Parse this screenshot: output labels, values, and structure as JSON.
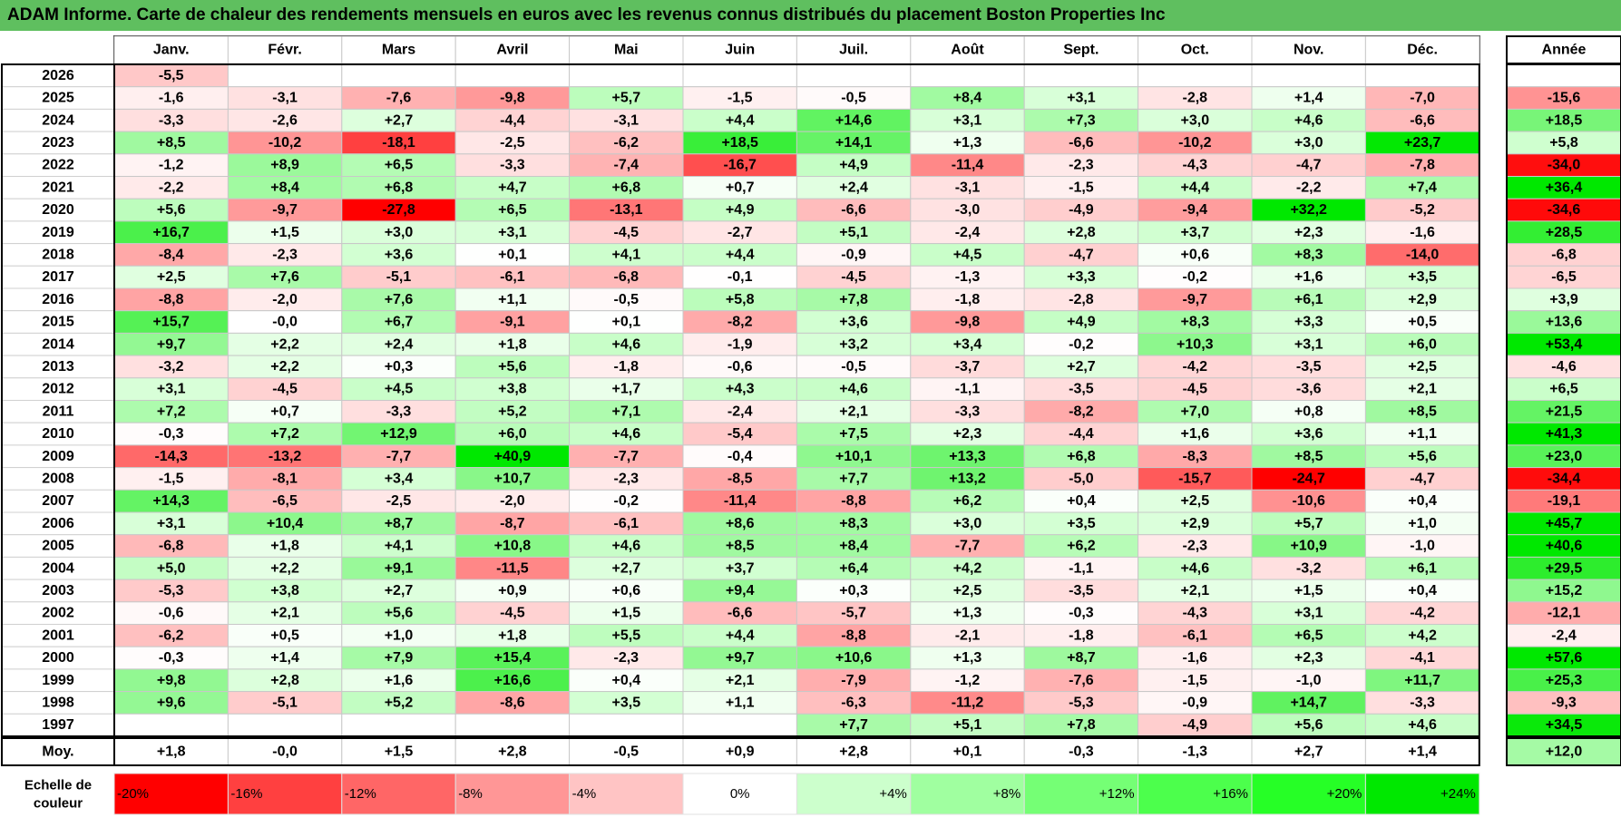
{
  "title": "ADAM Informe. Carte de chaleur des rendements mensuels en euros avec les revenus connus distribués du placement Boston Properties Inc",
  "chart_data": {
    "type": "heatmap",
    "title": "ADAM Informe. Carte de chaleur des rendements mensuels en euros avec les revenus connus distribués du placement Boston Properties Inc",
    "columns": [
      "Janv.",
      "Févr.",
      "Mars",
      "Avril",
      "Mai",
      "Juin",
      "Juil.",
      "Août",
      "Sept.",
      "Oct.",
      "Nov.",
      "Déc."
    ],
    "annual_header": "Année",
    "rows": [
      {
        "year": "2026",
        "months": [
          "-5,5",
          "",
          "",
          "",
          "",
          "",
          "",
          "",
          "",
          "",
          "",
          ""
        ],
        "annual": ""
      },
      {
        "year": "2025",
        "months": [
          "-1,6",
          "-3,1",
          "-7,6",
          "-9,8",
          "+5,7",
          "-1,5",
          "-0,5",
          "+8,4",
          "+3,1",
          "-2,8",
          "+1,4",
          "-7,0"
        ],
        "annual": "-15,6"
      },
      {
        "year": "2024",
        "months": [
          "-3,3",
          "-2,6",
          "+2,7",
          "-4,4",
          "-3,1",
          "+4,4",
          "+14,6",
          "+3,1",
          "+7,3",
          "+3,0",
          "+4,6",
          "-6,6"
        ],
        "annual": "+18,5"
      },
      {
        "year": "2023",
        "months": [
          "+8,5",
          "-10,2",
          "-18,1",
          "-2,5",
          "-6,2",
          "+18,5",
          "+14,1",
          "+1,3",
          "-6,6",
          "-10,2",
          "+3,0",
          "+23,7"
        ],
        "annual": "+5,8"
      },
      {
        "year": "2022",
        "months": [
          "-1,2",
          "+8,9",
          "+6,5",
          "-3,3",
          "-7,4",
          "-16,7",
          "+4,9",
          "-11,4",
          "-2,3",
          "-4,3",
          "-4,7",
          "-7,8"
        ],
        "annual": "-34,0"
      },
      {
        "year": "2021",
        "months": [
          "-2,2",
          "+8,4",
          "+6,8",
          "+4,7",
          "+6,8",
          "+0,7",
          "+2,4",
          "-3,1",
          "-1,5",
          "+4,4",
          "-2,2",
          "+7,4"
        ],
        "annual": "+36,4"
      },
      {
        "year": "2020",
        "months": [
          "+5,6",
          "-9,7",
          "-27,8",
          "+6,5",
          "-13,1",
          "+4,9",
          "-6,6",
          "-3,0",
          "-4,9",
          "-9,4",
          "+32,2",
          "-5,2"
        ],
        "annual": "-34,6"
      },
      {
        "year": "2019",
        "months": [
          "+16,7",
          "+1,5",
          "+3,0",
          "+3,1",
          "-4,5",
          "-2,7",
          "+5,1",
          "-2,4",
          "+2,8",
          "+3,7",
          "+2,3",
          "-1,6"
        ],
        "annual": "+28,5"
      },
      {
        "year": "2018",
        "months": [
          "-8,4",
          "-2,3",
          "+3,6",
          "+0,1",
          "+4,1",
          "+4,4",
          "-0,9",
          "+4,5",
          "-4,7",
          "+0,6",
          "+8,3",
          "-14,0"
        ],
        "annual": "-6,8"
      },
      {
        "year": "2017",
        "months": [
          "+2,5",
          "+7,6",
          "-5,1",
          "-6,1",
          "-6,8",
          "-0,1",
          "-4,5",
          "-1,3",
          "+3,3",
          "-0,2",
          "+1,6",
          "+3,5"
        ],
        "annual": "-6,5"
      },
      {
        "year": "2016",
        "months": [
          "-8,8",
          "-2,0",
          "+7,6",
          "+1,1",
          "-0,5",
          "+5,8",
          "+7,8",
          "-1,8",
          "-2,8",
          "-9,7",
          "+6,1",
          "+2,9"
        ],
        "annual": "+3,9"
      },
      {
        "year": "2015",
        "months": [
          "+15,7",
          "-0,0",
          "+6,7",
          "-9,1",
          "+0,1",
          "-8,2",
          "+3,6",
          "-9,8",
          "+4,9",
          "+8,3",
          "+3,3",
          "+0,5"
        ],
        "annual": "+13,6"
      },
      {
        "year": "2014",
        "months": [
          "+9,7",
          "+2,2",
          "+2,4",
          "+1,8",
          "+4,6",
          "-1,9",
          "+3,2",
          "+3,4",
          "-0,2",
          "+10,3",
          "+3,1",
          "+6,0"
        ],
        "annual": "+53,4"
      },
      {
        "year": "2013",
        "months": [
          "-3,2",
          "+2,2",
          "+0,3",
          "+5,6",
          "-1,8",
          "-0,6",
          "-0,5",
          "-3,7",
          "+2,7",
          "-4,2",
          "-3,5",
          "+2,5"
        ],
        "annual": "-4,6"
      },
      {
        "year": "2012",
        "months": [
          "+3,1",
          "-4,5",
          "+4,5",
          "+3,8",
          "+1,7",
          "+4,3",
          "+4,6",
          "-1,1",
          "-3,5",
          "-4,5",
          "-3,6",
          "+2,1"
        ],
        "annual": "+6,5"
      },
      {
        "year": "2011",
        "months": [
          "+7,2",
          "+0,7",
          "-3,3",
          "+5,2",
          "+7,1",
          "-2,4",
          "+2,1",
          "-3,3",
          "-8,2",
          "+7,0",
          "+0,8",
          "+8,5"
        ],
        "annual": "+21,5"
      },
      {
        "year": "2010",
        "months": [
          "-0,3",
          "+7,2",
          "+12,9",
          "+6,0",
          "+4,6",
          "-5,4",
          "+7,5",
          "+2,3",
          "-4,4",
          "+1,6",
          "+3,6",
          "+1,1"
        ],
        "annual": "+41,3"
      },
      {
        "year": "2009",
        "months": [
          "-14,3",
          "-13,2",
          "-7,7",
          "+40,9",
          "-7,7",
          "-0,4",
          "+10,1",
          "+13,3",
          "+6,8",
          "-8,3",
          "+8,5",
          "+5,6"
        ],
        "annual": "+23,0"
      },
      {
        "year": "2008",
        "months": [
          "-1,5",
          "-8,1",
          "+3,4",
          "+10,7",
          "-2,3",
          "-8,5",
          "+7,7",
          "+13,2",
          "-5,0",
          "-15,7",
          "-24,7",
          "-4,7"
        ],
        "annual": "-34,4"
      },
      {
        "year": "2007",
        "months": [
          "+14,3",
          "-6,5",
          "-2,5",
          "-2,0",
          "-0,2",
          "-11,4",
          "-8,8",
          "+6,2",
          "+0,4",
          "+2,5",
          "-10,6",
          "+0,4"
        ],
        "annual": "-19,1"
      },
      {
        "year": "2006",
        "months": [
          "+3,1",
          "+10,4",
          "+8,7",
          "-8,7",
          "-6,1",
          "+8,6",
          "+8,3",
          "+3,0",
          "+3,5",
          "+2,9",
          "+5,7",
          "+1,0"
        ],
        "annual": "+45,7"
      },
      {
        "year": "2005",
        "months": [
          "-6,8",
          "+1,8",
          "+4,1",
          "+10,8",
          "+4,6",
          "+8,5",
          "+8,4",
          "-7,7",
          "+6,2",
          "-2,3",
          "+10,9",
          "-1,0"
        ],
        "annual": "+40,6"
      },
      {
        "year": "2004",
        "months": [
          "+5,0",
          "+2,2",
          "+9,1",
          "-11,5",
          "+2,7",
          "+3,7",
          "+6,4",
          "+4,2",
          "-1,1",
          "+4,6",
          "-3,2",
          "+6,1"
        ],
        "annual": "+29,5"
      },
      {
        "year": "2003",
        "months": [
          "-5,3",
          "+3,8",
          "+2,7",
          "+0,9",
          "+0,6",
          "+9,4",
          "+0,3",
          "+2,5",
          "-3,5",
          "+2,1",
          "+1,5",
          "+0,4"
        ],
        "annual": "+15,2"
      },
      {
        "year": "2002",
        "months": [
          "-0,6",
          "+2,1",
          "+5,6",
          "-4,5",
          "+1,5",
          "-6,6",
          "-5,7",
          "+1,3",
          "-0,3",
          "-4,3",
          "+3,1",
          "-4,2"
        ],
        "annual": "-12,1"
      },
      {
        "year": "2001",
        "months": [
          "-6,2",
          "+0,5",
          "+1,0",
          "+1,8",
          "+5,5",
          "+4,4",
          "-8,8",
          "-2,1",
          "-1,8",
          "-6,1",
          "+6,5",
          "+4,2"
        ],
        "annual": "-2,4"
      },
      {
        "year": "2000",
        "months": [
          "-0,3",
          "+1,4",
          "+7,9",
          "+15,4",
          "-2,3",
          "+9,7",
          "+10,6",
          "+1,3",
          "+8,7",
          "-1,6",
          "+2,3",
          "-4,1"
        ],
        "annual": "+57,6"
      },
      {
        "year": "1999",
        "months": [
          "+9,8",
          "+2,8",
          "+1,6",
          "+16,6",
          "+0,4",
          "+2,1",
          "-7,9",
          "-1,2",
          "-7,6",
          "-1,5",
          "-1,0",
          "+11,7"
        ],
        "annual": "+25,3"
      },
      {
        "year": "1998",
        "months": [
          "+9,6",
          "-5,1",
          "+5,2",
          "-8,6",
          "+3,5",
          "+1,1",
          "-6,3",
          "-11,2",
          "-5,3",
          "-0,9",
          "+14,7",
          "-3,3"
        ],
        "annual": "-9,3"
      },
      {
        "year": "1997",
        "months": [
          "",
          "",
          "",
          "",
          "",
          "",
          "+7,7",
          "+5,1",
          "+7,8",
          "-4,9",
          "+5,6",
          "+4,6"
        ],
        "annual": "+34,5"
      }
    ],
    "average": {
      "label": "Moy.",
      "months": [
        "+1,8",
        "-0,0",
        "+1,5",
        "+2,8",
        "-0,5",
        "+0,9",
        "+2,8",
        "+0,1",
        "-0,3",
        "-1,3",
        "+2,7",
        "+1,4"
      ],
      "annual": "+12,0"
    },
    "scale": {
      "label_line1": "Echelle de",
      "label_line2": "couleur",
      "steps": [
        "-20%",
        "-16%",
        "-12%",
        "-8%",
        "-4%",
        "0%",
        "+4%",
        "+8%",
        "+12%",
        "+16%",
        "+20%",
        "+24%"
      ],
      "colors": [
        "#ff0000",
        "#ff4040",
        "#ff6666",
        "#ff9696",
        "#ffc4c4",
        "#ffffff",
        "#ccffcc",
        "#a0ffa0",
        "#75ff75",
        "#4cff4c",
        "#26ff26",
        "#00e800"
      ]
    },
    "colors": {
      "title_bar": "#5fbf5f",
      "negative_max": "#ff0000",
      "positive_max": "#00e800",
      "neutral": "#ffffff",
      "grid": "#c8c8c8"
    }
  }
}
